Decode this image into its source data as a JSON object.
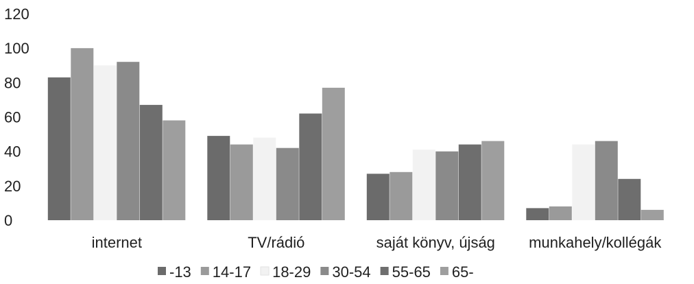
{
  "chart_data": {
    "type": "bar",
    "title": "",
    "xlabel": "",
    "ylabel": "",
    "ylim": [
      0,
      120
    ],
    "y_ticks": [
      "0",
      "20",
      "40",
      "60",
      "80",
      "100",
      "120"
    ],
    "grid": false,
    "legend_position": "bottom",
    "categories": [
      "internet",
      "TV/rádió",
      "saját könyv, újság",
      "munkahely/kollégák"
    ],
    "series": [
      {
        "name": "-13",
        "color": "#6b6b6b",
        "values": [
          83,
          49,
          27,
          7
        ]
      },
      {
        "name": "14-17",
        "color": "#9a9a9a",
        "values": [
          100,
          44,
          28,
          8
        ]
      },
      {
        "name": "18-29",
        "color": "#f2f2f2",
        "values": [
          90,
          48,
          41,
          44
        ]
      },
      {
        "name": "30-54",
        "color": "#8a8a8a",
        "values": [
          92,
          42,
          40,
          46
        ]
      },
      {
        "name": "55-65",
        "color": "#6e6e6e",
        "values": [
          67,
          62,
          44,
          24
        ]
      },
      {
        "name": "65-",
        "color": "#9e9e9e",
        "values": [
          58,
          77,
          46,
          6
        ]
      }
    ]
  }
}
